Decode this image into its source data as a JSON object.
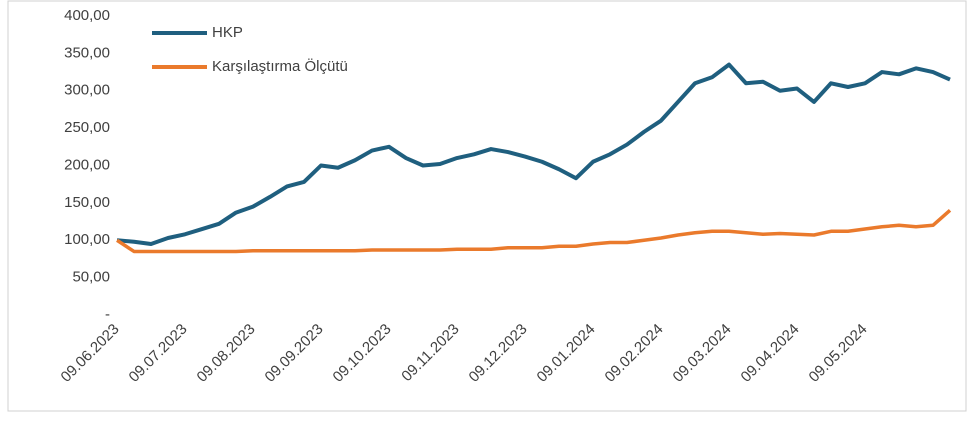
{
  "chart_data": {
    "type": "line",
    "categories": [
      "09.06.2023",
      null,
      null,
      null,
      "09.07.2023",
      null,
      null,
      null,
      "09.08.2023",
      null,
      null,
      null,
      "09.09.2023",
      null,
      null,
      null,
      "09.10.2023",
      null,
      null,
      null,
      "09.11.2023",
      null,
      null,
      null,
      "09.12.2023",
      null,
      null,
      null,
      "09.01.2024",
      null,
      null,
      null,
      "09.02.2024",
      null,
      null,
      null,
      "09.03.2024",
      null,
      null,
      null,
      "09.04.2024",
      null,
      null,
      null,
      "09.05.2024",
      null,
      null,
      null,
      null,
      null
    ],
    "series": [
      {
        "name": "HKP",
        "color": "#1f5f7f",
        "values": [
          100,
          98,
          95,
          103,
          108,
          115,
          122,
          137,
          145,
          158,
          172,
          178,
          200,
          197,
          207,
          220,
          225,
          210,
          200,
          202,
          210,
          215,
          222,
          218,
          212,
          205,
          195,
          183,
          205,
          215,
          228,
          245,
          260,
          285,
          310,
          318,
          335,
          310,
          312,
          300,
          303,
          285,
          310,
          305,
          310,
          325,
          322,
          330,
          325,
          315
        ]
      },
      {
        "name": "Karşılaştırma Ölçütü",
        "color": "#ea7a2c",
        "values": [
          100,
          85,
          85,
          85,
          85,
          85,
          85,
          85,
          86,
          86,
          86,
          86,
          86,
          86,
          86,
          87,
          87,
          87,
          87,
          87,
          88,
          88,
          88,
          90,
          90,
          90,
          92,
          92,
          95,
          97,
          97,
          100,
          103,
          107,
          110,
          112,
          112,
          110,
          108,
          109,
          108,
          107,
          112,
          112,
          115,
          118,
          120,
          118,
          120,
          140
        ]
      }
    ],
    "ylim": [
      0,
      400
    ],
    "yticks": [
      {
        "value": 0,
        "label": "-"
      },
      {
        "value": 50,
        "label": "50,00"
      },
      {
        "value": 100,
        "label": "100,00"
      },
      {
        "value": 150,
        "label": "150,00"
      },
      {
        "value": 200,
        "label": "200,00"
      },
      {
        "value": 250,
        "label": "250,00"
      },
      {
        "value": 300,
        "label": "300,00"
      },
      {
        "value": 350,
        "label": "350,00"
      },
      {
        "value": 400,
        "label": "400,00"
      }
    ],
    "grid": false,
    "legend": "top-left"
  }
}
